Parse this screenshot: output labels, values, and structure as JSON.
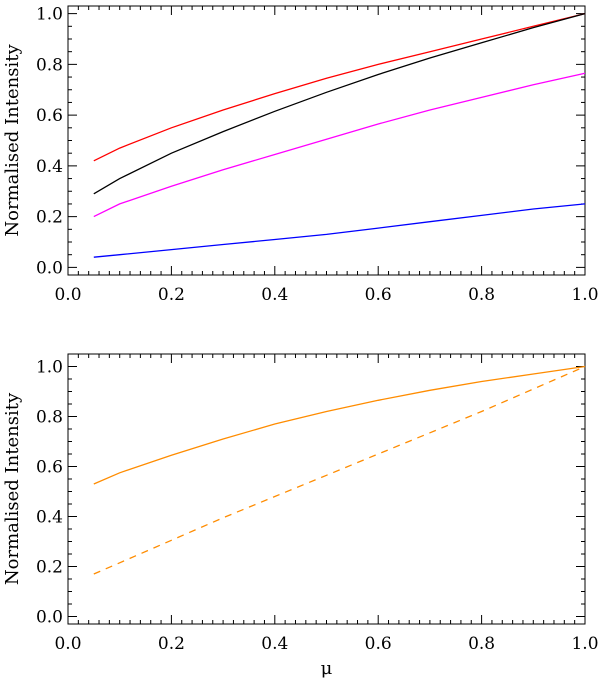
{
  "chart_data": [
    {
      "type": "line",
      "title": "",
      "xlabel": "",
      "ylabel": "Normalised Intensity",
      "xlim": [
        0.0,
        1.0
      ],
      "ylim": [
        -0.03,
        1.03
      ],
      "x_ticks": [
        "0.0",
        "0.2",
        "0.4",
        "0.6",
        "0.8",
        "1.0"
      ],
      "y_ticks": [
        "0.0",
        "0.2",
        "0.4",
        "0.6",
        "0.8",
        "1.0"
      ],
      "x": [
        0.05,
        0.1,
        0.2,
        0.3,
        0.4,
        0.5,
        0.6,
        0.7,
        0.8,
        0.9,
        1.0
      ],
      "series": [
        {
          "name": "red",
          "color": "#ff0000",
          "style": "solid",
          "values": [
            0.42,
            0.47,
            0.55,
            0.62,
            0.685,
            0.745,
            0.8,
            0.85,
            0.9,
            0.95,
            1.0
          ]
        },
        {
          "name": "black",
          "color": "#000000",
          "style": "solid",
          "values": [
            0.29,
            0.35,
            0.45,
            0.535,
            0.615,
            0.69,
            0.76,
            0.825,
            0.885,
            0.945,
            1.0
          ]
        },
        {
          "name": "magenta",
          "color": "#ff00ff",
          "style": "solid",
          "values": [
            0.2,
            0.25,
            0.32,
            0.385,
            0.445,
            0.505,
            0.565,
            0.62,
            0.67,
            0.72,
            0.765
          ]
        },
        {
          "name": "blue",
          "color": "#0000ff",
          "style": "solid",
          "values": [
            0.04,
            0.05,
            0.07,
            0.09,
            0.11,
            0.13,
            0.155,
            0.18,
            0.205,
            0.23,
            0.25
          ]
        }
      ]
    },
    {
      "type": "line",
      "title": "",
      "xlabel": "μ",
      "ylabel": "Normalised Intensity",
      "xlim": [
        0.0,
        1.0
      ],
      "ylim": [
        -0.03,
        1.05
      ],
      "x_ticks": [
        "0.0",
        "0.2",
        "0.4",
        "0.6",
        "0.8",
        "1.0"
      ],
      "y_ticks": [
        "0.0",
        "0.2",
        "0.4",
        "0.6",
        "0.8",
        "1.0"
      ],
      "x": [
        0.05,
        0.1,
        0.2,
        0.3,
        0.4,
        0.5,
        0.6,
        0.7,
        0.8,
        0.9,
        1.0
      ],
      "series": [
        {
          "name": "orange-solid",
          "color": "#ff8c00",
          "style": "solid",
          "values": [
            0.53,
            0.575,
            0.645,
            0.71,
            0.77,
            0.82,
            0.865,
            0.905,
            0.94,
            0.97,
            1.0
          ]
        },
        {
          "name": "orange-dashed",
          "color": "#ff8c00",
          "style": "dashed",
          "values": [
            0.17,
            0.215,
            0.305,
            0.395,
            0.48,
            0.565,
            0.65,
            0.735,
            0.82,
            0.91,
            1.0
          ]
        }
      ]
    }
  ]
}
